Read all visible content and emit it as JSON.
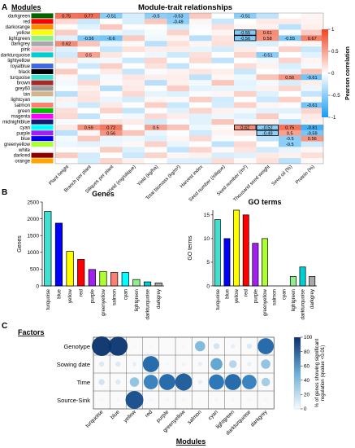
{
  "panelA": {
    "letter": "A",
    "modules_label": "Modules",
    "title": "Module-trait relationships",
    "colorbar_label": "Pearson correlation",
    "colorbar_ticks": [
      "1",
      "0.5",
      "0",
      "-0.5",
      "-1"
    ],
    "modules": [
      {
        "name": "darkgreen",
        "color": "#006400"
      },
      {
        "name": "red",
        "color": "#ff0000"
      },
      {
        "name": "darkorange",
        "color": "#ff8c00"
      },
      {
        "name": "yellow",
        "color": "#ffff00"
      },
      {
        "name": "lightgreen",
        "color": "#90ee90"
      },
      {
        "name": "darkgrey",
        "color": "#a9a9a9"
      },
      {
        "name": "pink",
        "color": "#ffc0cb"
      },
      {
        "name": "darkturquoise",
        "color": "#00ced1"
      },
      {
        "name": "lightyellow",
        "color": "#ffffe0"
      },
      {
        "name": "royalblue",
        "color": "#4169e1"
      },
      {
        "name": "black",
        "color": "#000000"
      },
      {
        "name": "turquoise",
        "color": "#40e0d0"
      },
      {
        "name": "brown",
        "color": "#a52a2a"
      },
      {
        "name": "grey60",
        "color": "#999999"
      },
      {
        "name": "tan",
        "color": "#d2b48c"
      },
      {
        "name": "lightcyan",
        "color": "#e0ffff"
      },
      {
        "name": "salmon",
        "color": "#fa8072"
      },
      {
        "name": "green",
        "color": "#00c000"
      },
      {
        "name": "magenta",
        "color": "#ff00ff"
      },
      {
        "name": "midnightblue",
        "color": "#191970"
      },
      {
        "name": "cyan",
        "color": "#00ffff"
      },
      {
        "name": "purple",
        "color": "#a020f0"
      },
      {
        "name": "blue",
        "color": "#0000ff"
      },
      {
        "name": "greenyellow",
        "color": "#adff2f"
      },
      {
        "name": "white",
        "color": "#ffffff"
      },
      {
        "name": "darkred",
        "color": "#8b0000"
      },
      {
        "name": "orange",
        "color": "#ffa500"
      }
    ],
    "traits": [
      "Plant height",
      "Branch per plant",
      "Siliques per plant",
      "Yield (mg/silique)",
      "Yield (kg/ha)",
      "Total biomass (kg/m²)",
      "Harvest index",
      "Seed number (/silique)",
      "Seed number (/m²)",
      "Thousand seed weight",
      "Seed oil (%)",
      "Protein (%)"
    ],
    "labels": [
      {
        "row": 0,
        "col": 0,
        "text": "0.75"
      },
      {
        "row": 0,
        "col": 1,
        "text": "0.77"
      },
      {
        "row": 0,
        "col": 2,
        "text": "-0.51"
      },
      {
        "row": 0,
        "col": 4,
        "text": "-0.5"
      },
      {
        "row": 0,
        "col": 5,
        "text": "-0.53"
      },
      {
        "row": 0,
        "col": 8,
        "text": "-0.51"
      },
      {
        "row": 1,
        "col": 5,
        "text": "-0.49"
      },
      {
        "row": 3,
        "col": 8,
        "text": "-0.55"
      },
      {
        "row": 3,
        "col": 9,
        "text": "0.61"
      },
      {
        "row": 4,
        "col": 1,
        "text": "-0.56"
      },
      {
        "row": 4,
        "col": 2,
        "text": "-0.6"
      },
      {
        "row": 4,
        "col": 8,
        "text": "-0.56"
      },
      {
        "row": 4,
        "col": 9,
        "text": "0.58"
      },
      {
        "row": 4,
        "col": 10,
        "text": "-0.55"
      },
      {
        "row": 4,
        "col": 11,
        "text": "0.67"
      },
      {
        "row": 5,
        "col": 0,
        "text": "0.62"
      },
      {
        "row": 7,
        "col": 1,
        "text": "0.5"
      },
      {
        "row": 7,
        "col": 9,
        "text": "-0.51"
      },
      {
        "row": 11,
        "col": 10,
        "text": "0.56"
      },
      {
        "row": 11,
        "col": 11,
        "text": "-0.61"
      },
      {
        "row": 16,
        "col": 11,
        "text": "-0.61"
      },
      {
        "row": 20,
        "col": 1,
        "text": "0.59"
      },
      {
        "row": 20,
        "col": 2,
        "text": "0.72"
      },
      {
        "row": 20,
        "col": 4,
        "text": "0.5"
      },
      {
        "row": 20,
        "col": 8,
        "text": "0.62"
      },
      {
        "row": 20,
        "col": 9,
        "text": "-0.52"
      },
      {
        "row": 20,
        "col": 10,
        "text": "0.75"
      },
      {
        "row": 20,
        "col": 11,
        "text": "-0.81"
      },
      {
        "row": 21,
        "col": 2,
        "text": "0.56"
      },
      {
        "row": 21,
        "col": 9,
        "text": "-0.49"
      },
      {
        "row": 21,
        "col": 10,
        "text": "0.5"
      },
      {
        "row": 21,
        "col": 11,
        "text": "-0.59"
      },
      {
        "row": 22,
        "col": 10,
        "text": "-0.5"
      },
      {
        "row": 22,
        "col": 11,
        "text": "0.56"
      },
      {
        "row": 23,
        "col": 10,
        "text": "-0.5"
      }
    ],
    "boxed_cells": [
      [
        3,
        8
      ],
      [
        4,
        8
      ],
      [
        20,
        8
      ],
      [
        20,
        9
      ],
      [
        21,
        9
      ]
    ]
  },
  "panelB": {
    "letter": "B",
    "chart_data": [
      {
        "type": "bar",
        "title": "Genes",
        "ylabel": "Genes",
        "ylim": [
          0,
          2500
        ],
        "yticks": [
          "0",
          "500",
          "1000",
          "1500",
          "2000",
          "2500"
        ],
        "categories": [
          "turquoise",
          "blue",
          "yellow",
          "red",
          "purple",
          "greenyellow",
          "salmon",
          "cyan",
          "lightgreen",
          "darkturquoise",
          "darkgrey"
        ],
        "values": [
          2220,
          1870,
          1030,
          790,
          490,
          430,
          400,
          400,
          190,
          120,
          90
        ],
        "colors": [
          "#40e0d0",
          "#0000ff",
          "#ffff00",
          "#ff0000",
          "#a020f0",
          "#adff2f",
          "#fa8072",
          "#00ffff",
          "#90ee90",
          "#00ced1",
          "#a9a9a9"
        ]
      },
      {
        "type": "bar",
        "title": "GO terms",
        "ylabel": "GO terms",
        "ylim": [
          0,
          16
        ],
        "yticks": [
          "0",
          "5",
          "10",
          "15"
        ],
        "categories": [
          "turquoise",
          "blue",
          "yellow",
          "red",
          "purple",
          "greenyellow",
          "salmon",
          "cyan",
          "lightgreen",
          "darkturquoise",
          "darkgrey"
        ],
        "values": [
          14,
          10,
          16,
          15,
          9,
          10,
          0,
          0,
          2,
          4,
          2
        ],
        "colors": [
          "#40e0d0",
          "#0000ff",
          "#ffff00",
          "#ff0000",
          "#a020f0",
          "#adff2f",
          "#fa8072",
          "#00ffff",
          "#90ee90",
          "#00ced1",
          "#a9a9a9"
        ]
      }
    ]
  },
  "panelC": {
    "letter": "C",
    "factors_label": "Factors",
    "modules_label": "Modules",
    "colorbar_label": "% of genes showing significant regulation (qvalue <0.01)",
    "colorbar_ticks": [
      "100",
      "80",
      "60",
      "40",
      "20",
      "0"
    ],
    "factors": [
      "Genotype",
      "Sowing date",
      "Time",
      "Source-Sink"
    ],
    "modules": [
      "turquoise",
      "blue",
      "yellow",
      "red",
      "purple",
      "greenyellow",
      "salmon",
      "cyan",
      "lightgreen",
      "darkturquoise",
      "darkgrey"
    ],
    "chart_data": {
      "type": "heatmap",
      "xlabel": "Modules",
      "ylabel": "Factors",
      "rows": [
        "Genotype",
        "Sowing date",
        "Time",
        "Source-Sink"
      ],
      "columns": [
        "turquoise",
        "blue",
        "yellow",
        "red",
        "purple",
        "greenyellow",
        "salmon",
        "cyan",
        "lightgreen",
        "darkturquoise",
        "darkgrey"
      ],
      "values": [
        [
          100,
          98,
          3,
          5,
          2,
          3,
          45,
          20,
          10,
          15,
          80
        ],
        [
          15,
          15,
          10,
          80,
          5,
          8,
          10,
          55,
          30,
          10,
          40
        ],
        [
          20,
          15,
          40,
          70,
          80,
          85,
          10,
          75,
          80,
          70,
          35
        ],
        [
          5,
          5,
          90,
          5,
          5,
          5,
          3,
          5,
          5,
          5,
          5
        ]
      ]
    }
  }
}
